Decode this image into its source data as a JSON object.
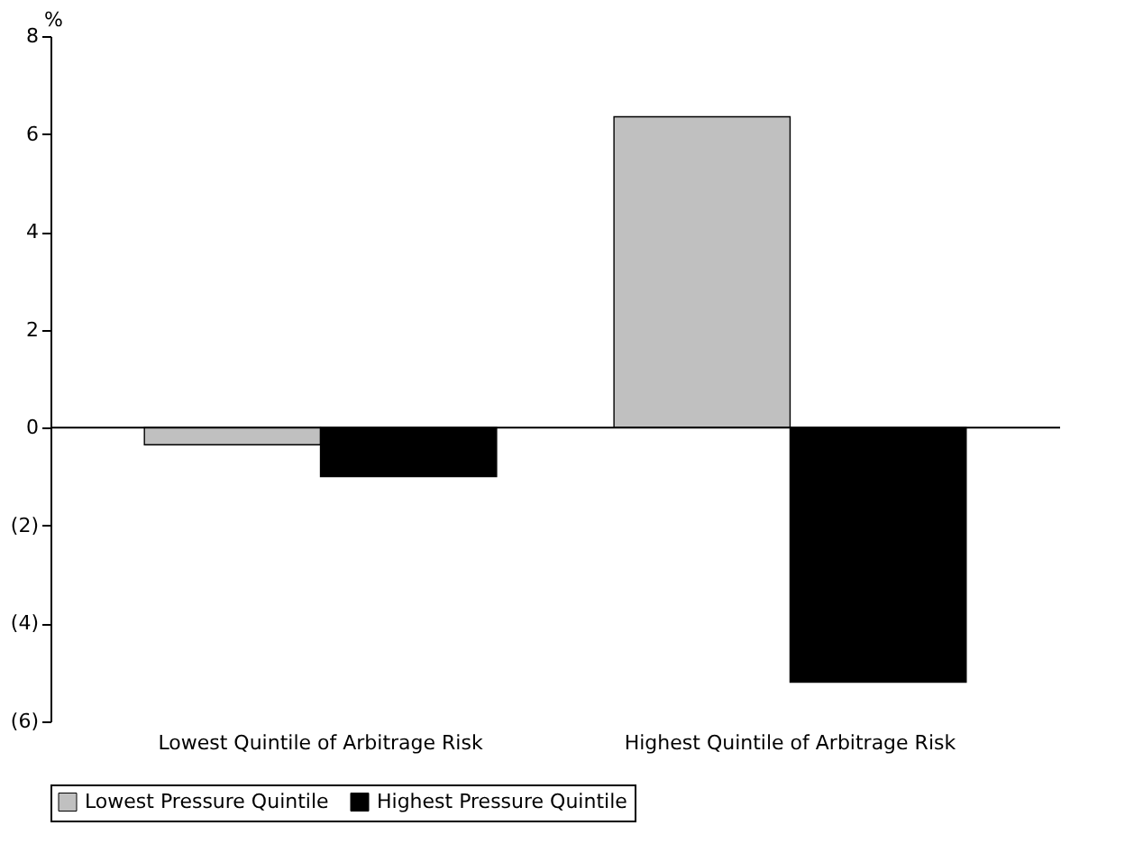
{
  "chart_data": {
    "type": "bar",
    "ylabel": "%",
    "categories": [
      "Lowest Quintile of Arbitrage Risk",
      "Highest Quintile of Arbitrage Risk"
    ],
    "series": [
      {
        "name": "Lowest Pressure Quintile",
        "color": "#c0c0c0",
        "values": [
          -0.35,
          6.35
        ]
      },
      {
        "name": "Highest Pressure Quintile",
        "color": "#000000",
        "values": [
          -1.0,
          -5.2
        ]
      }
    ],
    "ylim": [
      -6,
      8
    ],
    "yticks": [
      {
        "value": -6,
        "label": "(6)"
      },
      {
        "value": -4,
        "label": "(4)"
      },
      {
        "value": -2,
        "label": "(2)"
      },
      0,
      2,
      4,
      6,
      8
    ],
    "ref_lines": [
      {
        "axis": "y",
        "value": 0,
        "color": "#000000"
      }
    ],
    "grid": false,
    "legend": "bottom"
  }
}
